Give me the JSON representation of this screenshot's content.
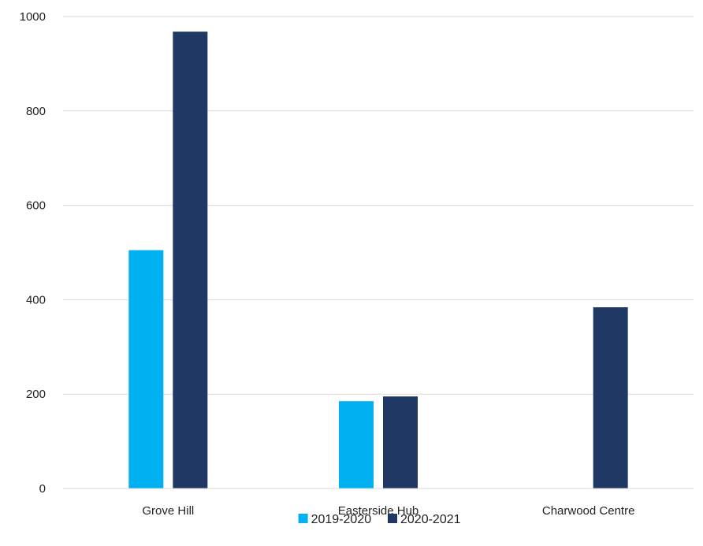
{
  "chart_data": {
    "type": "bar",
    "categories": [
      "Grove Hill",
      "Easterside Hub",
      "Charwood Centre"
    ],
    "series": [
      {
        "name": "2019-2020",
        "color": "#00b0f0",
        "values": [
          505,
          185,
          0
        ]
      },
      {
        "name": "2020-2021",
        "color": "#203864",
        "values": [
          968,
          195,
          384
        ]
      }
    ],
    "ylim": [
      0,
      1000
    ],
    "yticks": [
      0,
      200,
      400,
      600,
      800,
      1000
    ],
    "grid": true,
    "legend_position": "bottom"
  }
}
